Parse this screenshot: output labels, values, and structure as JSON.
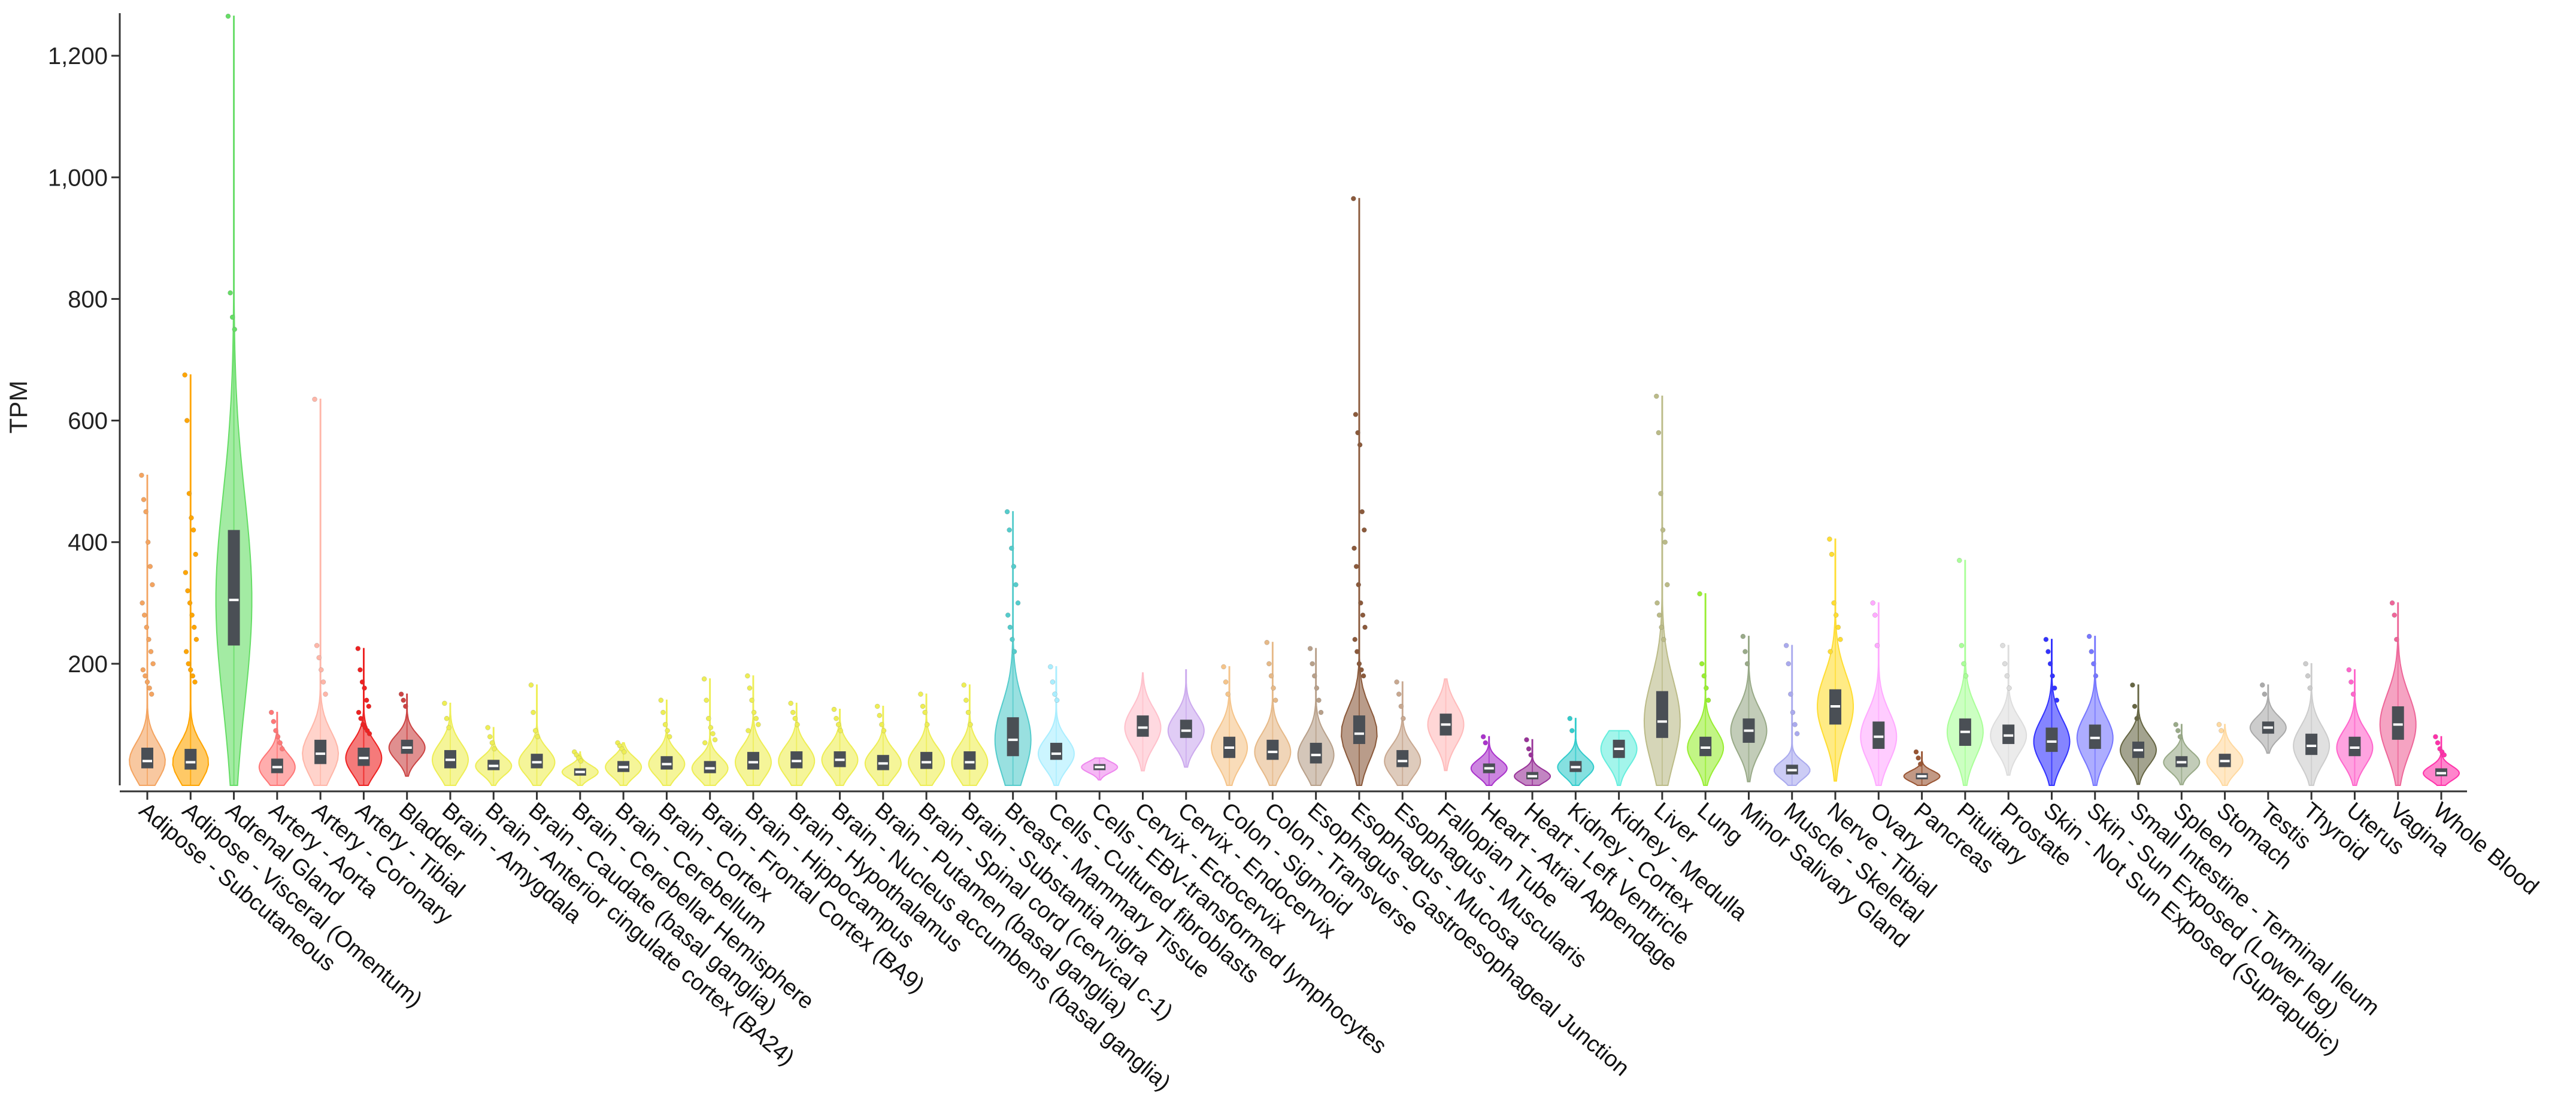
{
  "chart_data": {
    "type": "violin",
    "title": "",
    "xlabel": "",
    "ylabel": "TPM",
    "ylim": [
      0,
      1270
    ],
    "yticks": [
      200,
      400,
      600,
      800,
      1000,
      1200
    ],
    "ytick_labels": [
      "200",
      "400",
      "600",
      "800",
      "1,000",
      "1,200"
    ],
    "series": [
      {
        "name": "Adipose - Subcutaneous",
        "color": "#f4a460",
        "median": 40,
        "q1": 28,
        "q3": 62,
        "max": 510,
        "outliers": [
          510,
          470,
          450,
          400,
          360,
          330,
          300,
          280,
          260,
          240,
          220,
          200,
          190,
          180,
          170,
          160,
          150
        ]
      },
      {
        "name": "Adipose - Visceral (Omentum)",
        "color": "#ffa500",
        "median": 38,
        "q1": 26,
        "q3": 60,
        "max": 675,
        "outliers": [
          675,
          600,
          480,
          440,
          420,
          380,
          350,
          320,
          300,
          280,
          260,
          240,
          220,
          200,
          190,
          180,
          170
        ]
      },
      {
        "name": "Adrenal Gland",
        "color": "#66dd66",
        "median": 305,
        "q1": 230,
        "q3": 420,
        "max": 1265,
        "outliers": [
          1265,
          810,
          770,
          750
        ]
      },
      {
        "name": "Artery - Aorta",
        "color": "#ff7777",
        "median": 30,
        "q1": 20,
        "q3": 44,
        "max": 120,
        "outliers": [
          120,
          105,
          90,
          80,
          70,
          60
        ]
      },
      {
        "name": "Artery - Coronary",
        "color": "#ffb6a8",
        "median": 52,
        "q1": 35,
        "q3": 75,
        "max": 635,
        "outliers": [
          635,
          230,
          210,
          190,
          170,
          150
        ]
      },
      {
        "name": "Artery - Tibial",
        "color": "#ee2222",
        "median": 45,
        "q1": 32,
        "q3": 62,
        "max": 225,
        "outliers": [
          225,
          190,
          170,
          160,
          140,
          130,
          120,
          110,
          100,
          95,
          90,
          85
        ]
      },
      {
        "name": "Bladder",
        "color": "#cc4444",
        "median": 62,
        "q1": 52,
        "q3": 75,
        "max": 150,
        "outliers": [
          150,
          140,
          130
        ]
      },
      {
        "name": "Brain - Amygdala",
        "color": "#eeee55",
        "median": 42,
        "q1": 28,
        "q3": 58,
        "max": 135,
        "outliers": [
          135,
          110,
          95
        ]
      },
      {
        "name": "Brain - Anterior cingulate cortex (BA24)",
        "color": "#eeee55",
        "median": 32,
        "q1": 25,
        "q3": 42,
        "max": 95,
        "outliers": [
          95,
          80,
          70,
          60
        ]
      },
      {
        "name": "Brain - Caudate (basal ganglia)",
        "color": "#eeee55",
        "median": 38,
        "q1": 28,
        "q3": 52,
        "max": 165,
        "outliers": [
          165,
          120,
          90,
          80
        ]
      },
      {
        "name": "Brain - Cerebellar Hemisphere",
        "color": "#eeee55",
        "median": 22,
        "q1": 16,
        "q3": 28,
        "max": 55,
        "outliers": [
          55,
          50,
          45,
          40
        ]
      },
      {
        "name": "Brain - Cerebellum",
        "color": "#eeee55",
        "median": 30,
        "q1": 22,
        "q3": 40,
        "max": 70,
        "outliers": [
          70,
          65,
          60,
          55
        ]
      },
      {
        "name": "Brain - Cortex",
        "color": "#eeee55",
        "median": 35,
        "q1": 26,
        "q3": 48,
        "max": 140,
        "outliers": [
          140,
          120,
          100,
          90,
          80
        ]
      },
      {
        "name": "Brain - Frontal Cortex (BA9)",
        "color": "#eeee55",
        "median": 28,
        "q1": 20,
        "q3": 40,
        "max": 175,
        "outliers": [
          175,
          140,
          110,
          95,
          85,
          75,
          70
        ]
      },
      {
        "name": "Brain - Hippocampus",
        "color": "#eeee55",
        "median": 38,
        "q1": 26,
        "q3": 55,
        "max": 180,
        "outliers": [
          180,
          160,
          140,
          120,
          110,
          100,
          90
        ]
      },
      {
        "name": "Brain - Hypothalamus",
        "color": "#eeee55",
        "median": 40,
        "q1": 28,
        "q3": 56,
        "max": 135,
        "outliers": [
          135,
          120,
          110,
          100
        ]
      },
      {
        "name": "Brain - Nucleus accumbens (basal ganglia)",
        "color": "#eeee55",
        "median": 42,
        "q1": 30,
        "q3": 56,
        "max": 125,
        "outliers": [
          125,
          110,
          100,
          90
        ]
      },
      {
        "name": "Brain - Putamen (basal ganglia)",
        "color": "#eeee55",
        "median": 36,
        "q1": 25,
        "q3": 50,
        "max": 130,
        "outliers": [
          130,
          115,
          100,
          90
        ]
      },
      {
        "name": "Brain - Spinal cord (cervical c-1)",
        "color": "#eeee55",
        "median": 38,
        "q1": 27,
        "q3": 55,
        "max": 150,
        "outliers": [
          150,
          130,
          120,
          100
        ]
      },
      {
        "name": "Brain - Substantia nigra",
        "color": "#eeee55",
        "median": 38,
        "q1": 26,
        "q3": 56,
        "max": 165,
        "outliers": [
          165,
          140,
          120,
          100
        ]
      },
      {
        "name": "Breast - Mammary Tissue",
        "color": "#55cccc",
        "median": 75,
        "q1": 48,
        "q3": 112,
        "max": 450,
        "outliers": [
          450,
          420,
          390,
          360,
          330,
          300,
          280,
          260,
          240,
          220
        ]
      },
      {
        "name": "Cells - Cultured fibroblasts",
        "color": "#aaeeff",
        "median": 52,
        "q1": 42,
        "q3": 70,
        "max": 195,
        "outliers": [
          195,
          170,
          150,
          140
        ]
      },
      {
        "name": "Cells - EBV-transformed lymphocytes",
        "color": "#ee88ee",
        "median": 30,
        "q1": 25,
        "q3": 35,
        "max": 45,
        "outliers": []
      },
      {
        "name": "Cervix - Ectocervix",
        "color": "#ffc0cb",
        "median": 95,
        "q1": 80,
        "q3": 115,
        "max": 185,
        "outliers": []
      },
      {
        "name": "Cervix - Endocervix",
        "color": "#ccaaee",
        "median": 90,
        "q1": 78,
        "q3": 108,
        "max": 190,
        "outliers": []
      },
      {
        "name": "Colon - Sigmoid",
        "color": "#f5c48a",
        "median": 62,
        "q1": 45,
        "q3": 80,
        "max": 195,
        "outliers": [
          195,
          170,
          150
        ]
      },
      {
        "name": "Colon - Transverse",
        "color": "#e6b988",
        "median": 55,
        "q1": 42,
        "q3": 75,
        "max": 235,
        "outliers": [
          235,
          200,
          180,
          160,
          140
        ]
      },
      {
        "name": "Esophagus - Gastroesophageal Junction",
        "color": "#b8a08a",
        "median": 50,
        "q1": 36,
        "q3": 70,
        "max": 225,
        "outliers": [
          225,
          200,
          180,
          160,
          140,
          120
        ]
      },
      {
        "name": "Esophagus - Mucosa",
        "color": "#8b5a3c",
        "median": 85,
        "q1": 68,
        "q3": 115,
        "max": 965,
        "outliers": [
          965,
          610,
          580,
          560,
          450,
          420,
          390,
          360,
          330,
          300,
          280,
          260,
          240,
          220,
          200,
          190,
          180
        ]
      },
      {
        "name": "Esophagus - Muscularis",
        "color": "#c8a890",
        "median": 40,
        "q1": 30,
        "q3": 58,
        "max": 170,
        "outliers": [
          170,
          150,
          130,
          110
        ]
      },
      {
        "name": "Fallopian Tube",
        "color": "#ffbbbb",
        "median": 100,
        "q1": 82,
        "q3": 118,
        "max": 175,
        "outliers": []
      },
      {
        "name": "Heart - Atrial Appendage",
        "color": "#aa33cc",
        "median": 28,
        "q1": 20,
        "q3": 36,
        "max": 80,
        "outliers": [
          80,
          70
        ]
      },
      {
        "name": "Heart - Left Ventricle",
        "color": "#993399",
        "median": 15,
        "q1": 10,
        "q3": 22,
        "max": 75,
        "outliers": [
          75,
          60,
          50
        ]
      },
      {
        "name": "Kidney - Cortex",
        "color": "#33cccc",
        "median": 30,
        "q1": 22,
        "q3": 40,
        "max": 110,
        "outliers": [
          110,
          90
        ]
      },
      {
        "name": "Kidney - Medulla",
        "color": "#66eedd",
        "median": 60,
        "q1": 45,
        "q3": 75,
        "max": 90,
        "outliers": []
      },
      {
        "name": "Liver",
        "color": "#bbbb88",
        "median": 105,
        "q1": 78,
        "q3": 155,
        "max": 640,
        "outliers": [
          640,
          580,
          480,
          420,
          400,
          330,
          300,
          280,
          260,
          240
        ]
      },
      {
        "name": "Lung",
        "color": "#99ee33",
        "median": 62,
        "q1": 48,
        "q3": 80,
        "max": 315,
        "outliers": [
          315,
          200,
          180,
          160,
          140
        ]
      },
      {
        "name": "Minor Salivary Gland",
        "color": "#99aa88",
        "median": 90,
        "q1": 70,
        "q3": 110,
        "max": 245,
        "outliers": [
          245,
          220,
          200
        ]
      },
      {
        "name": "Muscle - Skeletal",
        "color": "#aaaaee",
        "median": 25,
        "q1": 18,
        "q3": 34,
        "max": 230,
        "outliers": [
          230,
          200,
          150,
          120,
          100,
          85
        ]
      },
      {
        "name": "Nerve - Tibial",
        "color": "#ffdd33",
        "median": 130,
        "q1": 100,
        "q3": 158,
        "max": 405,
        "outliers": [
          405,
          380,
          300,
          280,
          260,
          240,
          220
        ]
      },
      {
        "name": "Ovary",
        "color": "#ffaaff",
        "median": 80,
        "q1": 60,
        "q3": 105,
        "max": 300,
        "outliers": [
          300,
          280,
          230
        ]
      },
      {
        "name": "Pancreas",
        "color": "#995533",
        "median": 15,
        "q1": 10,
        "q3": 20,
        "max": 55,
        "outliers": [
          55,
          45,
          35
        ]
      },
      {
        "name": "Pituitary",
        "color": "#aaff99",
        "median": 88,
        "q1": 65,
        "q3": 110,
        "max": 370,
        "outliers": [
          370,
          230,
          200,
          180
        ]
      },
      {
        "name": "Prostate",
        "color": "#dddddd",
        "median": 82,
        "q1": 68,
        "q3": 100,
        "max": 230,
        "outliers": [
          230,
          200,
          180,
          160
        ]
      },
      {
        "name": "Skin - Not Sun Exposed (Suprapubic)",
        "color": "#3333ff",
        "median": 72,
        "q1": 55,
        "q3": 95,
        "max": 240,
        "outliers": [
          240,
          220,
          200,
          180,
          160,
          140
        ]
      },
      {
        "name": "Skin - Sun Exposed (Lower leg)",
        "color": "#7777ff",
        "median": 78,
        "q1": 60,
        "q3": 100,
        "max": 245,
        "outliers": [
          245,
          220,
          200,
          180
        ]
      },
      {
        "name": "Small Intestine - Terminal Ileum",
        "color": "#666644",
        "median": 58,
        "q1": 45,
        "q3": 72,
        "max": 165,
        "outliers": [
          165,
          130,
          110
        ]
      },
      {
        "name": "Spleen",
        "color": "#99aa88",
        "median": 38,
        "q1": 30,
        "q3": 48,
        "max": 100,
        "outliers": [
          100,
          90,
          80
        ]
      },
      {
        "name": "Stomach",
        "color": "#ffd9a0",
        "median": 40,
        "q1": 30,
        "q3": 52,
        "max": 100,
        "outliers": [
          100,
          90
        ]
      },
      {
        "name": "Testis",
        "color": "#aaaaaa",
        "median": 95,
        "q1": 85,
        "q3": 105,
        "max": 165,
        "outliers": [
          165,
          150
        ]
      },
      {
        "name": "Thyroid",
        "color": "#cccccc",
        "median": 65,
        "q1": 50,
        "q3": 85,
        "max": 200,
        "outliers": [
          200,
          180,
          160
        ]
      },
      {
        "name": "Uterus",
        "color": "#ff66cc",
        "median": 62,
        "q1": 48,
        "q3": 80,
        "max": 190,
        "outliers": [
          190,
          170,
          150
        ]
      },
      {
        "name": "Vagina",
        "color": "#ee6699",
        "median": 100,
        "q1": 75,
        "q3": 130,
        "max": 300,
        "outliers": [
          300,
          280,
          240
        ]
      },
      {
        "name": "Whole Blood",
        "color": "#ff33aa",
        "median": 20,
        "q1": 15,
        "q3": 28,
        "max": 80,
        "outliers": [
          80,
          70,
          60,
          55,
          50
        ]
      }
    ]
  }
}
